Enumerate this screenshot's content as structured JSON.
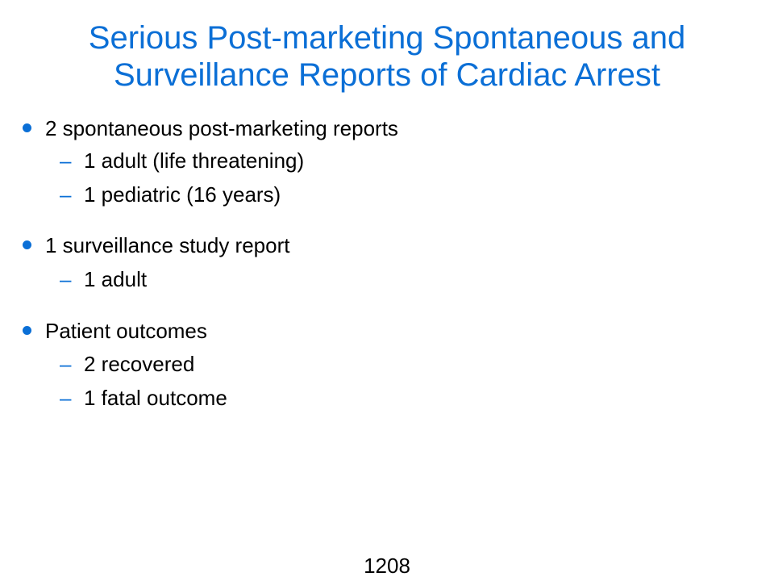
{
  "slide": {
    "title_lines": [
      "Serious Post-marketing Spontaneous and",
      "Surveillance Reports of Cardiac Arrest"
    ],
    "bullets": [
      {
        "text": "2 spontaneous post-marketing reports",
        "subs": [
          "1 adult (life threatening)",
          "1 pediatric (16 years)"
        ]
      },
      {
        "text": "1 surveillance study report",
        "subs": [
          "1 adult"
        ]
      },
      {
        "text": "Patient outcomes",
        "subs": [
          "2 recovered",
          "1 fatal outcome"
        ]
      }
    ],
    "sub_marker": "–",
    "page_number": "1208"
  },
  "colors": {
    "accent": "#0b6fd6",
    "text": "#000000",
    "background": "#ffffff"
  }
}
